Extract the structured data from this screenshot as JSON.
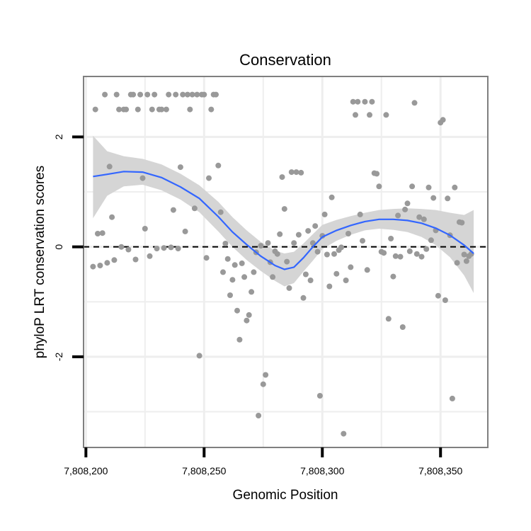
{
  "chart_data": {
    "type": "scatter",
    "title": "Conservation",
    "xlabel": "Genomic Position",
    "ylabel": "phyloP LRT conservation scores",
    "xlim": [
      7808199,
      7808370
    ],
    "ylim": [
      -3.65,
      3.1
    ],
    "x_ticks": [
      {
        "value": 7808200,
        "label": "7,808,200"
      },
      {
        "value": 7808250,
        "label": "7,808,250"
      },
      {
        "value": 7808300,
        "label": "7,808,300"
      },
      {
        "value": 7808350,
        "label": "7,808,350"
      }
    ],
    "y_ticks": [
      {
        "value": -2,
        "label": "-2"
      },
      {
        "value": 0,
        "label": "0"
      },
      {
        "value": 2,
        "label": "2"
      }
    ],
    "minor_x": [
      7808225,
      7808275,
      7808325
    ],
    "minor_y": [
      -3,
      -1,
      1
    ],
    "reference_line": {
      "y": 0,
      "style": "dashed",
      "color": "#000000"
    },
    "colors": {
      "points": "#999999",
      "smooth_line": "#3366ff",
      "confidence_band": "#d3d3d3",
      "grid": "#eeeeee",
      "frame": "#7f7f7f"
    },
    "grid": true,
    "legend": "none",
    "points": [
      {
        "x": 7808203,
        "y": -0.36
      },
      {
        "x": 7808204,
        "y": 2.5
      },
      {
        "x": 7808205,
        "y": 0.24
      },
      {
        "x": 7808206,
        "y": -0.34
      },
      {
        "x": 7808207,
        "y": 0.25
      },
      {
        "x": 7808208,
        "y": 2.77
      },
      {
        "x": 7808209,
        "y": -0.29
      },
      {
        "x": 7808210,
        "y": 1.46
      },
      {
        "x": 7808211,
        "y": 0.54
      },
      {
        "x": 7808212,
        "y": -0.24
      },
      {
        "x": 7808213,
        "y": 2.77
      },
      {
        "x": 7808214,
        "y": 2.5
      },
      {
        "x": 7808215,
        "y": 0.0
      },
      {
        "x": 7808216,
        "y": 2.5
      },
      {
        "x": 7808217,
        "y": 2.5
      },
      {
        "x": 7808218,
        "y": -0.05
      },
      {
        "x": 7808219,
        "y": 2.77
      },
      {
        "x": 7808220,
        "y": 2.77
      },
      {
        "x": 7808221,
        "y": -0.23
      },
      {
        "x": 7808222,
        "y": 2.5
      },
      {
        "x": 7808223,
        "y": 2.77
      },
      {
        "x": 7808224,
        "y": 1.25
      },
      {
        "x": 7808225,
        "y": 0.33
      },
      {
        "x": 7808226,
        "y": 2.77
      },
      {
        "x": 7808227,
        "y": -0.17
      },
      {
        "x": 7808228,
        "y": 2.5
      },
      {
        "x": 7808229,
        "y": 2.77
      },
      {
        "x": 7808230,
        "y": -0.03
      },
      {
        "x": 7808231,
        "y": 2.5
      },
      {
        "x": 7808232,
        "y": 2.5
      },
      {
        "x": 7808233,
        "y": -0.02
      },
      {
        "x": 7808234,
        "y": 2.5
      },
      {
        "x": 7808235,
        "y": 2.77
      },
      {
        "x": 7808236,
        "y": -0.01
      },
      {
        "x": 7808237,
        "y": 0.67
      },
      {
        "x": 7808238,
        "y": 2.77
      },
      {
        "x": 7808239,
        "y": -0.03
      },
      {
        "x": 7808240,
        "y": 1.45
      },
      {
        "x": 7808241,
        "y": 2.77
      },
      {
        "x": 7808242,
        "y": 0.28
      },
      {
        "x": 7808243,
        "y": 2.77
      },
      {
        "x": 7808244,
        "y": 2.5
      },
      {
        "x": 7808245,
        "y": 2.77
      },
      {
        "x": 7808246,
        "y": 0.7
      },
      {
        "x": 7808247,
        "y": 2.77
      },
      {
        "x": 7808248,
        "y": -1.98
      },
      {
        "x": 7808249,
        "y": 2.77
      },
      {
        "x": 7808250,
        "y": 2.77
      },
      {
        "x": 7808251,
        "y": -0.2
      },
      {
        "x": 7808252,
        "y": 1.25
      },
      {
        "x": 7808253,
        "y": 2.5
      },
      {
        "x": 7808254,
        "y": 2.77
      },
      {
        "x": 7808255,
        "y": 2.77
      },
      {
        "x": 7808256,
        "y": 1.48
      },
      {
        "x": 7808257,
        "y": 0.63
      },
      {
        "x": 7808258,
        "y": -0.46
      },
      {
        "x": 7808259,
        "y": 0.06
      },
      {
        "x": 7808260,
        "y": -0.22
      },
      {
        "x": 7808261,
        "y": -0.88
      },
      {
        "x": 7808262,
        "y": -0.6
      },
      {
        "x": 7808263,
        "y": -0.33
      },
      {
        "x": 7808264,
        "y": -1.16
      },
      {
        "x": 7808265,
        "y": -1.69
      },
      {
        "x": 7808266,
        "y": -0.3
      },
      {
        "x": 7808267,
        "y": -0.55
      },
      {
        "x": 7808268,
        "y": -1.34
      },
      {
        "x": 7808269,
        "y": -1.24
      },
      {
        "x": 7808270,
        "y": -0.82
      },
      {
        "x": 7808271,
        "y": -0.46
      },
      {
        "x": 7808272,
        "y": -0.1
      },
      {
        "x": 7808273,
        "y": -3.07
      },
      {
        "x": 7808274,
        "y": 0.02
      },
      {
        "x": 7808275,
        "y": -2.5
      },
      {
        "x": 7808276,
        "y": -2.33
      },
      {
        "x": 7808277,
        "y": 0.07
      },
      {
        "x": 7808278,
        "y": -0.28
      },
      {
        "x": 7808279,
        "y": -0.55
      },
      {
        "x": 7808280,
        "y": -0.08
      },
      {
        "x": 7808281,
        "y": -0.13
      },
      {
        "x": 7808282,
        "y": 0.23
      },
      {
        "x": 7808283,
        "y": 1.27
      },
      {
        "x": 7808284,
        "y": 0.69
      },
      {
        "x": 7808285,
        "y": -0.27
      },
      {
        "x": 7808286,
        "y": -0.75
      },
      {
        "x": 7808287,
        "y": 1.36
      },
      {
        "x": 7808288,
        "y": 0.07
      },
      {
        "x": 7808289,
        "y": 1.36
      },
      {
        "x": 7808290,
        "y": 0.22
      },
      {
        "x": 7808291,
        "y": 1.35
      },
      {
        "x": 7808292,
        "y": -0.93
      },
      {
        "x": 7808293,
        "y": -0.5
      },
      {
        "x": 7808294,
        "y": 0.29
      },
      {
        "x": 7808295,
        "y": -0.61
      },
      {
        "x": 7808296,
        "y": 0.07
      },
      {
        "x": 7808297,
        "y": 0.38
      },
      {
        "x": 7808298,
        "y": -0.09
      },
      {
        "x": 7808299,
        "y": -2.71
      },
      {
        "x": 7808300,
        "y": 0.2
      },
      {
        "x": 7808301,
        "y": 0.59
      },
      {
        "x": 7808302,
        "y": -0.14
      },
      {
        "x": 7808303,
        "y": -0.72
      },
      {
        "x": 7808304,
        "y": 0.9
      },
      {
        "x": 7808305,
        "y": -0.13
      },
      {
        "x": 7808306,
        "y": -0.49
      },
      {
        "x": 7808307,
        "y": -0.06
      },
      {
        "x": 7808308,
        "y": -0.01
      },
      {
        "x": 7808309,
        "y": -3.4
      },
      {
        "x": 7808310,
        "y": -0.61
      },
      {
        "x": 7808311,
        "y": 0.24
      },
      {
        "x": 7808312,
        "y": -0.37
      },
      {
        "x": 7808313,
        "y": 2.64
      },
      {
        "x": 7808314,
        "y": 2.4
      },
      {
        "x": 7808315,
        "y": 2.64
      },
      {
        "x": 7808316,
        "y": 0.59
      },
      {
        "x": 7808317,
        "y": 0.11
      },
      {
        "x": 7808318,
        "y": 2.64
      },
      {
        "x": 7808319,
        "y": -0.42
      },
      {
        "x": 7808320,
        "y": 2.4
      },
      {
        "x": 7808321,
        "y": 2.64
      },
      {
        "x": 7808322,
        "y": 1.34
      },
      {
        "x": 7808323,
        "y": 1.33
      },
      {
        "x": 7808324,
        "y": 1.1
      },
      {
        "x": 7808325,
        "y": -0.09
      },
      {
        "x": 7808326,
        "y": -0.11
      },
      {
        "x": 7808327,
        "y": 2.4
      },
      {
        "x": 7808328,
        "y": -1.31
      },
      {
        "x": 7808329,
        "y": 0.15
      },
      {
        "x": 7808330,
        "y": -0.54
      },
      {
        "x": 7808331,
        "y": -0.17
      },
      {
        "x": 7808332,
        "y": 0.57
      },
      {
        "x": 7808333,
        "y": -0.18
      },
      {
        "x": 7808334,
        "y": -1.46
      },
      {
        "x": 7808335,
        "y": 0.68
      },
      {
        "x": 7808336,
        "y": 0.79
      },
      {
        "x": 7808337,
        "y": -0.08
      },
      {
        "x": 7808338,
        "y": 1.1
      },
      {
        "x": 7808339,
        "y": 2.62
      },
      {
        "x": 7808340,
        "y": -0.13
      },
      {
        "x": 7808341,
        "y": 0.54
      },
      {
        "x": 7808342,
        "y": -0.18
      },
      {
        "x": 7808343,
        "y": 0.5
      },
      {
        "x": 7808344,
        "y": -0.04
      },
      {
        "x": 7808345,
        "y": 1.08
      },
      {
        "x": 7808346,
        "y": 0.12
      },
      {
        "x": 7808347,
        "y": 0.89
      },
      {
        "x": 7808348,
        "y": 0.3
      },
      {
        "x": 7808349,
        "y": -0.89
      },
      {
        "x": 7808350,
        "y": 2.26
      },
      {
        "x": 7808351,
        "y": 2.31
      },
      {
        "x": 7808352,
        "y": -0.97
      },
      {
        "x": 7808353,
        "y": 0.88
      },
      {
        "x": 7808354,
        "y": 0.21
      },
      {
        "x": 7808355,
        "y": -2.76
      },
      {
        "x": 7808356,
        "y": 1.08
      },
      {
        "x": 7808357,
        "y": -0.29
      },
      {
        "x": 7808358,
        "y": 0.45
      },
      {
        "x": 7808359,
        "y": 0.44
      },
      {
        "x": 7808360,
        "y": -0.14
      },
      {
        "x": 7808361,
        "y": -0.26
      },
      {
        "x": 7808362,
        "y": -0.17
      },
      {
        "x": 7808363,
        "y": -0.13
      }
    ],
    "smooth": {
      "x": [
        7808203,
        7808209,
        7808216,
        7808224,
        7808232,
        7808240,
        7808248,
        7808256,
        7808262,
        7808268,
        7808274,
        7808280,
        7808284,
        7808288,
        7808292,
        7808296,
        7808300,
        7808306,
        7808312,
        7808318,
        7808324,
        7808330,
        7808336,
        7808342,
        7808348,
        7808354,
        7808360,
        7808364
      ],
      "y": [
        1.28,
        1.32,
        1.37,
        1.36,
        1.26,
        1.09,
        0.88,
        0.55,
        0.27,
        0.04,
        -0.17,
        -0.34,
        -0.41,
        -0.37,
        -0.2,
        0.0,
        0.18,
        0.3,
        0.39,
        0.46,
        0.5,
        0.5,
        0.48,
        0.43,
        0.34,
        0.21,
        0.03,
        -0.12
      ],
      "lower": [
        0.52,
        0.93,
        1.1,
        1.13,
        1.03,
        0.86,
        0.63,
        0.28,
        -0.0,
        -0.24,
        -0.44,
        -0.62,
        -0.72,
        -0.66,
        -0.45,
        -0.25,
        -0.04,
        0.11,
        0.22,
        0.3,
        0.33,
        0.31,
        0.27,
        0.18,
        0.03,
        -0.19,
        -0.52,
        -0.84
      ],
      "upper": [
        2.02,
        1.74,
        1.65,
        1.6,
        1.5,
        1.33,
        1.12,
        0.82,
        0.54,
        0.3,
        0.09,
        -0.07,
        -0.12,
        -0.09,
        0.06,
        0.23,
        0.4,
        0.49,
        0.56,
        0.62,
        0.67,
        0.69,
        0.7,
        0.69,
        0.67,
        0.62,
        0.58,
        0.67
      ]
    }
  }
}
